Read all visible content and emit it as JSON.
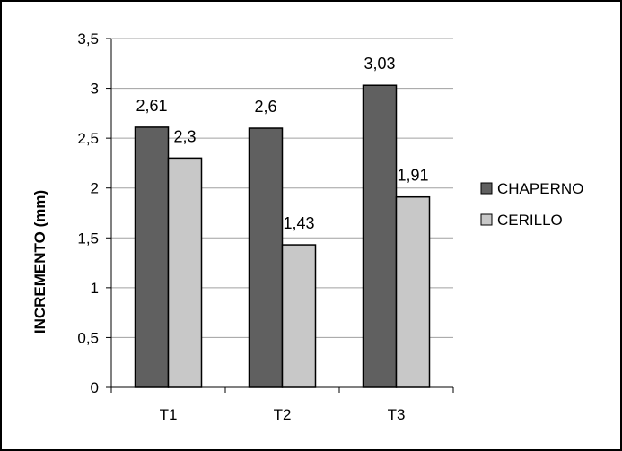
{
  "chart_data": {
    "type": "bar",
    "title": "",
    "xlabel": "",
    "ylabel": "INCREMENTO (mm)",
    "categories": [
      "T1",
      "T2",
      "T3"
    ],
    "series": [
      {
        "name": "CHAPERNO",
        "values": [
          2.61,
          2.6,
          3.03
        ],
        "labels": [
          "2,61",
          "2,6",
          "3,03"
        ],
        "color": "#606060"
      },
      {
        "name": "CERILLO",
        "values": [
          2.3,
          1.43,
          1.91
        ],
        "labels": [
          "2,3",
          "1,43",
          "1,91"
        ],
        "color": "#c8c8c8"
      }
    ],
    "ylim": [
      0,
      3.5
    ],
    "yticks": [
      0,
      0.5,
      1,
      1.5,
      2,
      2.5,
      3,
      3.5
    ],
    "ytick_labels": [
      "0",
      "0,5",
      "1",
      "1,5",
      "2",
      "2,5",
      "3",
      "3,5"
    ],
    "grid": true,
    "legend": "right"
  }
}
